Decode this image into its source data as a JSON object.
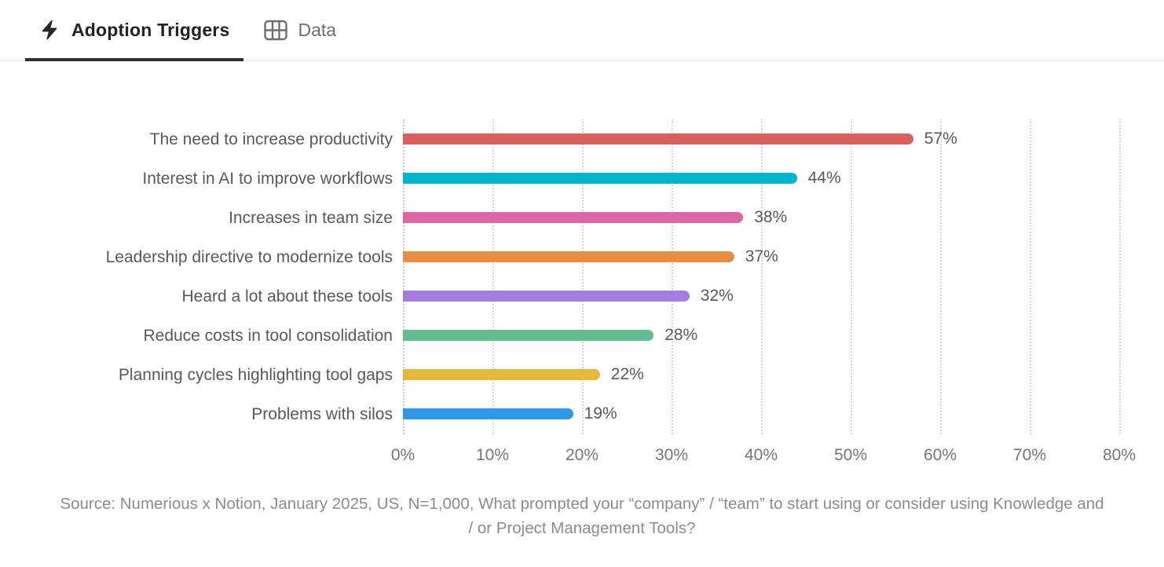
{
  "tabs": [
    {
      "label": "Adoption Triggers",
      "icon": "lightning-bolt-icon",
      "active": true
    },
    {
      "label": "Data",
      "icon": "table-icon",
      "active": false
    }
  ],
  "chart_data": {
    "type": "bar",
    "orientation": "horizontal",
    "title": "Adoption Triggers",
    "categories": [
      "The need to increase productivity",
      "Interest in AI to improve workflows",
      "Increases in team size",
      "Leadership directive to modernize tools",
      "Heard a lot about these tools",
      "Reduce costs in tool consolidation",
      "Planning cycles highlighting tool gaps",
      "Problems with silos"
    ],
    "values": [
      57,
      44,
      38,
      37,
      32,
      28,
      22,
      19
    ],
    "value_labels": [
      "57%",
      "44%",
      "38%",
      "37%",
      "32%",
      "28%",
      "22%",
      "19%"
    ],
    "bar_colors": [
      "#d95f5c",
      "#00b5ce",
      "#de66a6",
      "#e98d45",
      "#a47bde",
      "#62be8f",
      "#e6b73a",
      "#2f97e8"
    ],
    "xlabel": "",
    "ylabel": "",
    "xlim": [
      0,
      80
    ],
    "x_tick_values": [
      0,
      10,
      20,
      30,
      40,
      50,
      60,
      70,
      80
    ],
    "x_tick_labels": [
      "0%",
      "10%",
      "20%",
      "30%",
      "40%",
      "50%",
      "60%",
      "70%",
      "80%"
    ],
    "grid": "vertical-dotted",
    "legend": "none"
  },
  "footer": {
    "source_note": "Source: Numerious x Notion, January 2025, US, N=1,000, What prompted your “company” / “team” to start using or consider using Knowledge and / or Project Management Tools?"
  },
  "ui_colors": {
    "active_tab_text": "#222222",
    "inactive_tab_text": "#6e6e6e",
    "active_tab_underline": "#2e2e2e",
    "tabbar_border": "#ececec",
    "category_label_text": "#595959",
    "value_label_text": "#595959",
    "axis_tick_text": "#757575",
    "gridline": "#d9d9d9",
    "source_text": "#8c8c8c"
  }
}
